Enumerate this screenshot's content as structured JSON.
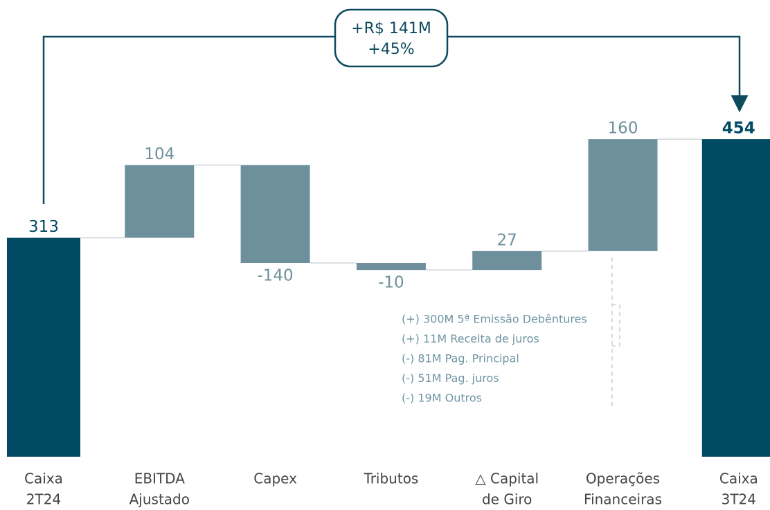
{
  "chart_data": {
    "type": "waterfall",
    "categories": [
      [
        "Caixa",
        "2T24"
      ],
      [
        "EBITDA",
        "Ajustado"
      ],
      [
        "Capex"
      ],
      [
        "Tributos"
      ],
      [
        "△ Capital",
        "de Giro"
      ],
      [
        "Operações",
        "Financeiras"
      ],
      [
        "Caixa",
        "3T24"
      ]
    ],
    "values": [
      313,
      104,
      -140,
      -10,
      27,
      160,
      454
    ],
    "measure": [
      "absolute",
      "relative",
      "relative",
      "relative",
      "relative",
      "relative",
      "absolute"
    ],
    "total_color": "#004a63",
    "delta_color": "#6e909c",
    "ylim": [
      0,
      650
    ],
    "annotation": [
      "+R$ 141M",
      "+45%"
    ],
    "notes": [
      "(+) 300M 5ª Emissão Debêntures",
      "(+) 11M Receita de juros",
      "(-) 81M Pag. Principal",
      "(-) 51M Pag. juros",
      "(-) 19M Outros"
    ]
  }
}
